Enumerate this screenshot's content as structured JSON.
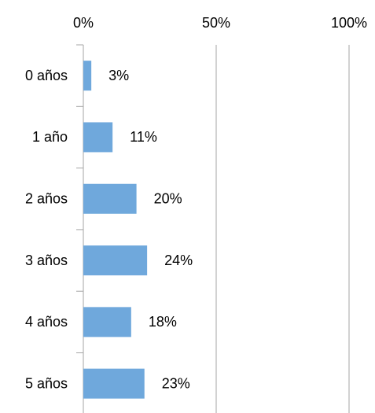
{
  "chart_data": {
    "type": "bar",
    "orientation": "horizontal",
    "categories": [
      "0 años",
      "1 año",
      "2 años",
      "3 años",
      "4 años",
      "5 años"
    ],
    "values": [
      3,
      11,
      20,
      24,
      18,
      23
    ],
    "value_labels": [
      "3%",
      "11%",
      "20%",
      "24%",
      "18%",
      "23%"
    ],
    "color": "#6fa8dc",
    "xlim": [
      0,
      100
    ],
    "xticks": [
      {
        "value": 0,
        "label": "0%"
      },
      {
        "value": 50,
        "label": "50%"
      },
      {
        "value": 100,
        "label": "100%"
      }
    ],
    "grid": true
  }
}
